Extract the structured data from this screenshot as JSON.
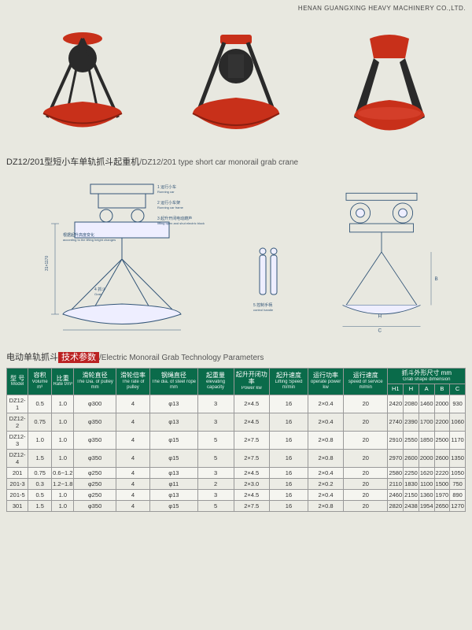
{
  "header": {
    "company": "HENAN GUANGXING HEAVY MACHINERY CO.,LTD."
  },
  "section1": {
    "title_cn": "DZ12/201型短小车单轨抓斗起重机",
    "title_en": "/DZ12/201 type short car monorail  grab crane"
  },
  "labels": {
    "l1": "1 运行小车",
    "l1_en": "Running car",
    "l2": "2 运行小车架",
    "l2_en": "Running car frame",
    "l3": "3 起升开闭电动葫芦",
    "l3_en": "lifting open and shut electric block",
    "l4": "根据起升高度变化",
    "l4_en": "according to the lifting height changes",
    "l5": "4 抓斗",
    "l5_en": "Grab",
    "l6": "5 控制手柄",
    "l6_en": "control handle",
    "dim_v": "31×1170",
    "dim_v2": "31×1180",
    "dim_h": "H",
    "dim_c": "C",
    "dim_b": "B"
  },
  "section2": {
    "title_cn": "电动单轨抓斗",
    "title_highlight": "技术参数",
    "title_en": "/Electric Monorail Grab Technology Parameters"
  },
  "table": {
    "headers": [
      {
        "cn": "型 号",
        "en": "Model"
      },
      {
        "cn": "容积",
        "en": "Volume m³"
      },
      {
        "cn": "比重",
        "en": "Rate t/m³"
      },
      {
        "cn": "滑轮直径",
        "en": "The Dia. of pulley mm"
      },
      {
        "cn": "滑轮倍率",
        "en": "The rate of pulley"
      },
      {
        "cn": "钢绳直径",
        "en": "The dia. of steel rope mm"
      },
      {
        "cn": "起重量",
        "en": "elevating capacity"
      },
      {
        "cn": "起升开闭功率",
        "en": "Power kw"
      },
      {
        "cn": "起升速度",
        "en": "Lifting Speed m/min"
      },
      {
        "cn": "运行功率",
        "en": "operate power kw"
      },
      {
        "cn": "运行速度",
        "en": "speed of service m/min"
      }
    ],
    "dim_group": {
      "cn": "抓斗外形尺寸  mm",
      "en": "Grab shape dimension"
    },
    "dim_headers": [
      "H1",
      "H",
      "A",
      "B",
      "C"
    ],
    "rows": [
      [
        "DZ12-1",
        "0.5",
        "1.0",
        "φ300",
        "4",
        "φ13",
        "3",
        "2×4.5",
        "16",
        "2×0.4",
        "20",
        "2420",
        "2080",
        "1460",
        "2000",
        "930"
      ],
      [
        "DZ12-2",
        "0.75",
        "1.0",
        "φ350",
        "4",
        "φ13",
        "3",
        "2×4.5",
        "16",
        "2×0.4",
        "20",
        "2740",
        "2390",
        "1700",
        "2200",
        "1060"
      ],
      [
        "DZ12-3",
        "1.0",
        "1.0",
        "φ350",
        "4",
        "φ15",
        "5",
        "2×7.5",
        "16",
        "2×0.8",
        "20",
        "2910",
        "2550",
        "1850",
        "2500",
        "1170"
      ],
      [
        "DZ12-4",
        "1.5",
        "1.0",
        "φ350",
        "4",
        "φ15",
        "5",
        "2×7.5",
        "16",
        "2×0.8",
        "20",
        "2970",
        "2600",
        "2000",
        "2600",
        "1350"
      ],
      [
        "201",
        "0.75",
        "0.6~1.2",
        "φ250",
        "4",
        "φ13",
        "3",
        "2×4.5",
        "16",
        "2×0.4",
        "20",
        "2580",
        "2250",
        "1620",
        "2220",
        "1050"
      ],
      [
        "201-3",
        "0.3",
        "1.2~1.8",
        "φ250",
        "4",
        "φ11",
        "2",
        "2×3.0",
        "16",
        "2×0.2",
        "20",
        "2110",
        "1830",
        "1100",
        "1500",
        "750"
      ],
      [
        "201-5",
        "0.5",
        "1.0",
        "φ250",
        "4",
        "φ13",
        "3",
        "2×4.5",
        "16",
        "2×0.4",
        "20",
        "2460",
        "2150",
        "1360",
        "1970",
        "890"
      ],
      [
        "301",
        "1.5",
        "1.0",
        "φ350",
        "4",
        "φ15",
        "5",
        "2×7.5",
        "16",
        "2×0.8",
        "20",
        "2820",
        "2438",
        "1954",
        "2650",
        "1270"
      ]
    ]
  },
  "colors": {
    "grab_red": "#c8301a",
    "grab_dark": "#2a2a2a",
    "diagram_line": "#335577",
    "table_header": "#0a6b4a"
  }
}
